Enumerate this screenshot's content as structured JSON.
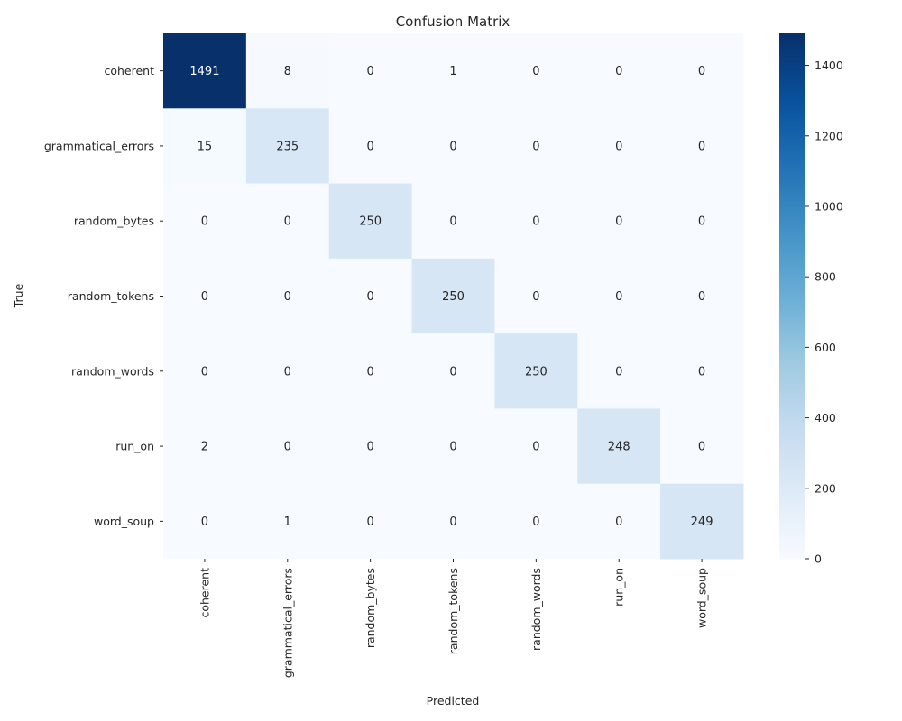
{
  "chart_data": {
    "type": "heatmap",
    "title": "Confusion Matrix",
    "xlabel": "Predicted",
    "ylabel": "True",
    "x_categories": [
      "coherent",
      "grammatical_errors",
      "random_bytes",
      "random_tokens",
      "random_words",
      "run_on",
      "word_soup"
    ],
    "y_categories": [
      "coherent",
      "grammatical_errors",
      "random_bytes",
      "random_tokens",
      "random_words",
      "run_on",
      "word_soup"
    ],
    "values": [
      [
        1491,
        8,
        0,
        1,
        0,
        0,
        0
      ],
      [
        15,
        235,
        0,
        0,
        0,
        0,
        0
      ],
      [
        0,
        0,
        250,
        0,
        0,
        0,
        0
      ],
      [
        0,
        0,
        0,
        250,
        0,
        0,
        0
      ],
      [
        0,
        0,
        0,
        0,
        250,
        0,
        0
      ],
      [
        2,
        0,
        0,
        0,
        0,
        248,
        0
      ],
      [
        0,
        1,
        0,
        0,
        0,
        0,
        249
      ]
    ],
    "colormap": "Blues",
    "colorbar": {
      "range": [
        0,
        1491
      ],
      "ticks": [
        0,
        200,
        400,
        600,
        800,
        1000,
        1200,
        1400
      ]
    },
    "colors": {
      "low": "#f7fbff",
      "high": "#08306b"
    }
  }
}
